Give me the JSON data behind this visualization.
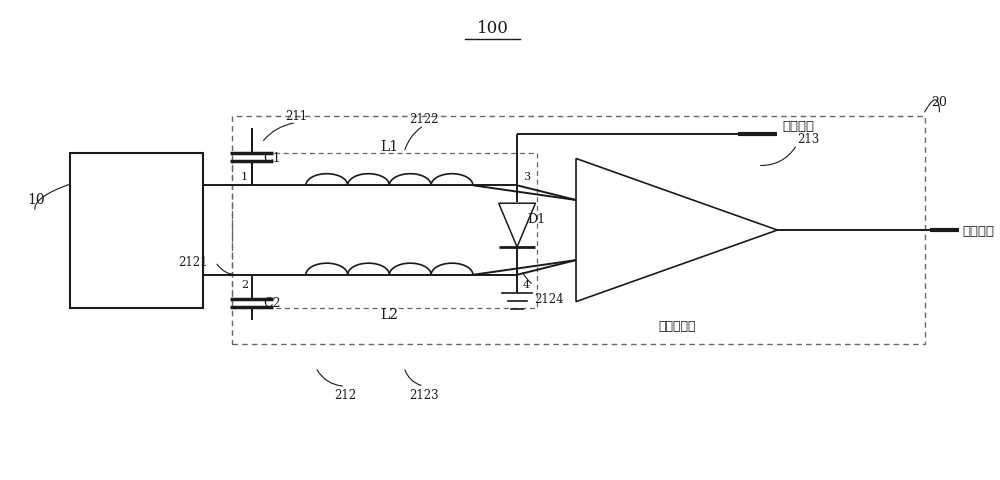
{
  "bg_color": "#ffffff",
  "line_color": "#1a1a1a",
  "dashed_color": "#666666",
  "text_color": "#1a1a1a",
  "fig_width": 10.0,
  "fig_height": 4.81,
  "labels": {
    "title": "100",
    "label_10": "10",
    "label_20": "20",
    "label_211": "211",
    "label_212": "212",
    "label_2121": "2121",
    "label_2122": "2122",
    "label_2123": "2123",
    "label_2124": "2124",
    "label_213": "213",
    "label_C1": "C1",
    "label_C2": "C2",
    "label_L1": "L1",
    "label_L2": "L2",
    "label_D1": "D1",
    "label_1": "1",
    "label_2": "2",
    "label_3": "3",
    "label_4": "4",
    "label_dc_in": "直流输入",
    "label_rf_out": "射频输出",
    "label_preamp": "前置放大器"
  }
}
